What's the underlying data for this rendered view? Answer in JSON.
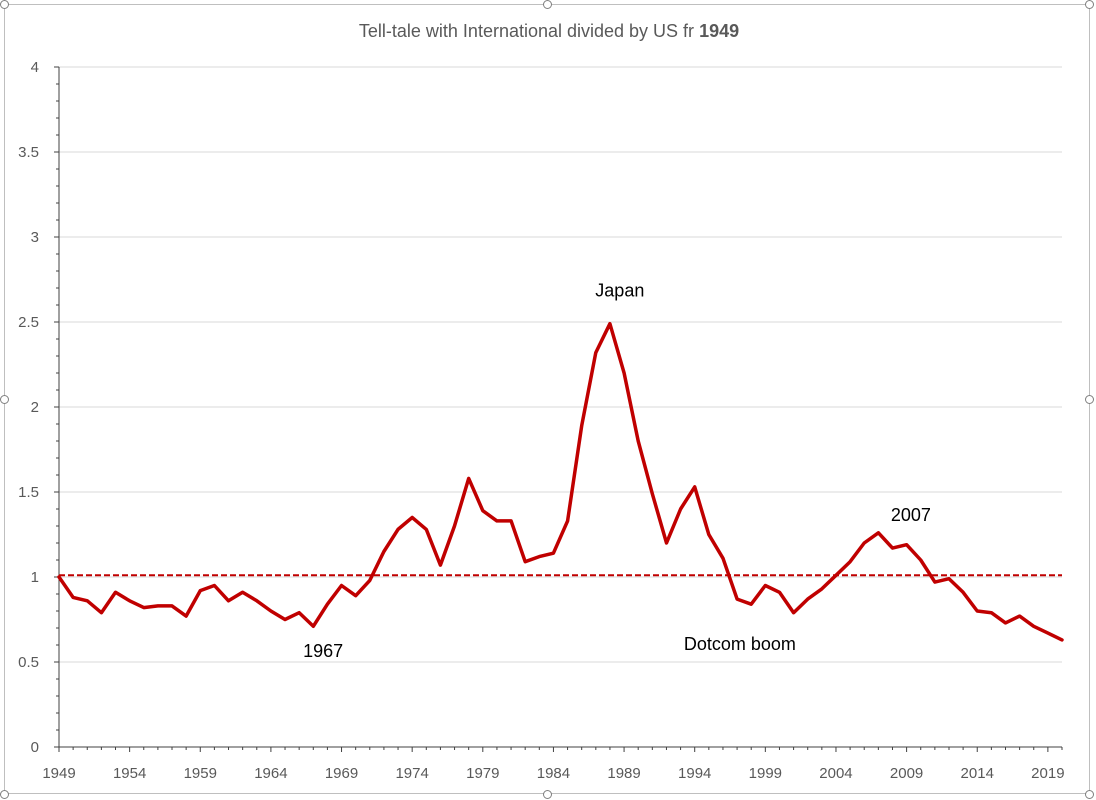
{
  "chart_data": {
    "type": "line",
    "title": "Tell-tale with International divided by US fr ",
    "title_bold": "1949",
    "xlabel": "",
    "ylabel": "",
    "ylim": [
      0,
      4
    ],
    "yticks": [
      0,
      0.5,
      1,
      1.5,
      2,
      2.5,
      3,
      3.5,
      4
    ],
    "ytick_labels": [
      "0",
      "0.5",
      "1",
      "1.5",
      "2",
      "2.5",
      "3",
      "3.5",
      "4"
    ],
    "xlim": [
      1949,
      2020
    ],
    "xticks": [
      1949,
      1954,
      1959,
      1964,
      1969,
      1974,
      1979,
      1984,
      1989,
      1994,
      1999,
      2004,
      2009,
      2014,
      2019
    ],
    "xtick_labels": [
      "1949",
      "1954",
      "1959",
      "1964",
      "1969",
      "1974",
      "1979",
      "1984",
      "1989",
      "1994",
      "1999",
      "2004",
      "2009",
      "2014",
      "2019"
    ],
    "grid": true,
    "series": [
      {
        "color": "#c00000",
        "x": [
          1949,
          1950,
          1951,
          1952,
          1953,
          1954,
          1955,
          1956,
          1957,
          1958,
          1959,
          1960,
          1961,
          1962,
          1963,
          1964,
          1965,
          1966,
          1967,
          1968,
          1969,
          1970,
          1971,
          1972,
          1973,
          1974,
          1975,
          1976,
          1977,
          1978,
          1979,
          1980,
          1981,
          1982,
          1983,
          1984,
          1985,
          1986,
          1987,
          1988,
          1989,
          1990,
          1991,
          1992,
          1993,
          1994,
          1995,
          1996,
          1997,
          1998,
          1999,
          2000,
          2001,
          2002,
          2003,
          2004,
          2005,
          2006,
          2007,
          2008,
          2009,
          2010,
          2011,
          2012,
          2013,
          2014,
          2015,
          2016,
          2017,
          2018,
          2019,
          2020
        ],
        "y": [
          1.0,
          0.88,
          0.86,
          0.79,
          0.91,
          0.86,
          0.82,
          0.83,
          0.83,
          0.77,
          0.92,
          0.95,
          0.86,
          0.91,
          0.86,
          0.8,
          0.75,
          0.79,
          0.71,
          0.84,
          0.95,
          0.89,
          0.98,
          1.15,
          1.28,
          1.35,
          1.28,
          1.07,
          1.3,
          1.58,
          1.39,
          1.33,
          1.33,
          1.09,
          1.12,
          1.14,
          1.33,
          1.89,
          2.32,
          2.49,
          2.2,
          1.8,
          1.49,
          1.2,
          1.4,
          1.53,
          1.25,
          1.11,
          0.87,
          0.84,
          0.95,
          0.91,
          0.79,
          0.87,
          0.93,
          1.01,
          1.09,
          1.2,
          1.26,
          1.17,
          1.19,
          1.1,
          0.97,
          0.99,
          0.91,
          0.8,
          0.79,
          0.73,
          0.77,
          0.71,
          0.67,
          0.63
        ]
      }
    ],
    "reference_line": {
      "y": 1.01,
      "style": "dashed",
      "color": "#c00000"
    },
    "annotations": [
      {
        "text": "Japan",
        "x": 1988.7,
        "y": 2.65
      },
      {
        "text": "2007",
        "x": 2009.3,
        "y": 1.33
      },
      {
        "text": "1967",
        "x": 1967.7,
        "y": 0.53
      },
      {
        "text": "Dotcom boom",
        "x": 1997.2,
        "y": 0.57
      }
    ]
  }
}
